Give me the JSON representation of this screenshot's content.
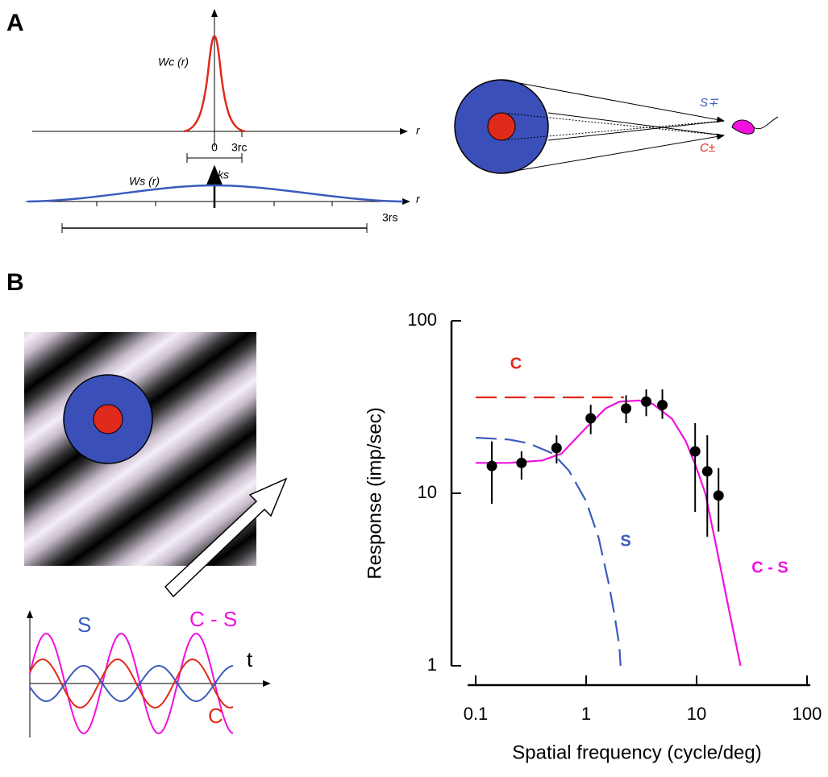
{
  "figure": {
    "panel_a": "A",
    "panel_b": "B",
    "wc_label": "Wc (r)",
    "zero": "0",
    "rc_label": "3rc",
    "r_axis": "r",
    "r_axis_2": "r",
    "ws_label": "Ws (r)",
    "ks_label": "ks",
    "rs_label": "3rs",
    "s_input": "S∓",
    "c_input": "C±",
    "wave_s": "S",
    "wave_cs": "C - S",
    "wave_c": "C",
    "wave_t": "t"
  },
  "chart_data": {
    "type": "line",
    "xlabel": "Spatial frequency (cycle/deg)",
    "ylabel": "Response (imp/sec)",
    "log_x": true,
    "log_y": true,
    "xlim": [
      0.1,
      100
    ],
    "ylim": [
      1,
      100
    ],
    "xticks": [
      0.1,
      1,
      10,
      100
    ],
    "yticks": [
      1,
      10,
      100
    ],
    "series": [
      {
        "name": "C",
        "color": "#e02a1c",
        "dashed": true,
        "x": [
          0.1,
          2.2
        ],
        "values": [
          36,
          36
        ]
      },
      {
        "name": "S",
        "color": "#3a5cbd",
        "dashed": true,
        "x": [
          0.1,
          0.2,
          0.3,
          0.5,
          0.7,
          1,
          1.3,
          1.6,
          1.8,
          2,
          2.05
        ],
        "values": [
          21,
          20.5,
          19.5,
          17,
          13.5,
          9,
          5.5,
          3,
          2,
          1.3,
          1
        ]
      },
      {
        "name": "C - S",
        "color": "#f010e0",
        "dashed": false,
        "x": [
          0.1,
          0.2,
          0.4,
          0.6,
          1,
          1.5,
          2,
          3,
          4,
          6,
          8,
          10,
          12,
          15,
          20,
          25
        ],
        "values": [
          15,
          15,
          15.5,
          17,
          24,
          31,
          34,
          34.5,
          33,
          27,
          20,
          14,
          10,
          5,
          2,
          1
        ]
      }
    ],
    "points": {
      "color": "#000000",
      "x": [
        0.14,
        0.26,
        0.54,
        1.1,
        2.3,
        3.5,
        4.9,
        9.7,
        12.5,
        15.8
      ],
      "values": [
        14.4,
        15,
        18.3,
        27.2,
        31,
        34,
        32.5,
        17.5,
        13.4,
        9.7
      ],
      "err_low": [
        8.7,
        12,
        14.9,
        22,
        25.5,
        28,
        27,
        7.8,
        5.6,
        6
      ],
      "err_high": [
        20,
        17.5,
        21.7,
        32.6,
        37,
        40,
        40,
        25.5,
        21.7,
        14
      ]
    }
  }
}
